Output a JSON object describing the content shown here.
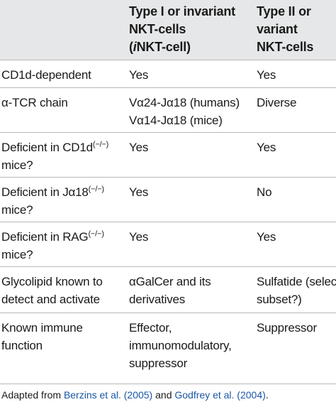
{
  "header": {
    "col1": "",
    "col2_lines": [
      "Type I or invariant",
      "NKT-cells",
      "(",
      "i",
      "NKT-cell)"
    ],
    "col3_lines": [
      "Type II or",
      "variant",
      "NKT-cells"
    ]
  },
  "rows": [
    {
      "label_lines": [
        "CD1d-dependent"
      ],
      "type1_lines": [
        "Yes"
      ],
      "type2_lines": [
        "Yes"
      ]
    },
    {
      "label_lines": [
        "α-TCR chain"
      ],
      "type1_lines": [
        "Vα24-Jα18 (humans)",
        "Vα14-Jα18 (mice)"
      ],
      "type2_lines": [
        "Diverse"
      ]
    },
    {
      "label_main": "Deficient in CD1d",
      "label_sup": "(−/−)",
      "label_line2": "mice?",
      "type1_lines": [
        "Yes"
      ],
      "type2_lines": [
        "Yes"
      ]
    },
    {
      "label_main": "Deficient in Jα18",
      "label_sup": "(−/−)",
      "label_line2": "mice?",
      "type1_lines": [
        "Yes"
      ],
      "type2_lines": [
        "No"
      ]
    },
    {
      "label_main": "Deficient in RAG",
      "label_sup": "(−/−)",
      "label_line2": "mice?",
      "type1_lines": [
        "Yes"
      ],
      "type2_lines": [
        "Yes"
      ]
    },
    {
      "label_lines": [
        "Glycolipid known to",
        "detect and activate"
      ],
      "type1_lines": [
        "αGalCer and its",
        "derivatives"
      ],
      "type2_lines": [
        "Sulfatide (select",
        "subset?)"
      ]
    },
    {
      "label_lines": [
        "Known immune",
        "function"
      ],
      "type1_lines": [
        "Effector,",
        "immunomodulatory,",
        "suppressor"
      ],
      "type2_lines": [
        "Suppressor"
      ]
    }
  ],
  "footnote": {
    "prefix": "Adapted from ",
    "ref1": "Berzins et al. (2005)",
    "middle": " and ",
    "ref2": "Godfrey et al. (2004)",
    "suffix": "."
  }
}
